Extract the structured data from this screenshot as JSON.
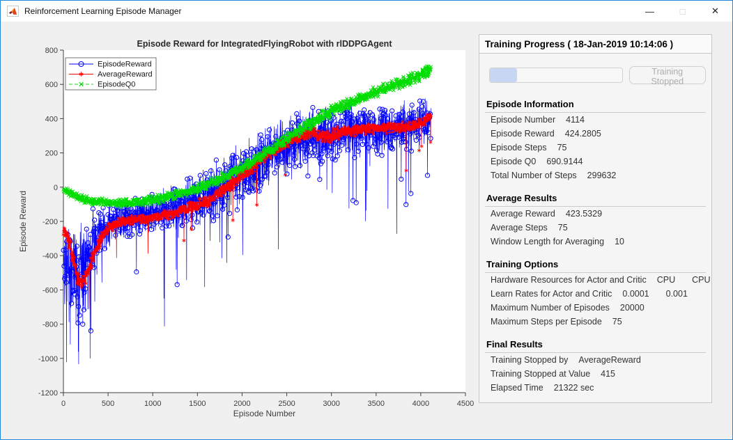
{
  "window": {
    "title": "Reinforcement Learning Episode Manager",
    "app_icon": "matlab-logo",
    "controls": {
      "minimize": "—",
      "maximize": "□",
      "close": "✕"
    }
  },
  "chart_data": {
    "type": "line",
    "title": "Episode Reward for IntegratedFlyingRobot with rlDDPGAgent",
    "xlabel": "Episode Number",
    "ylabel": "Episode Reward",
    "xlim": [
      0,
      4500
    ],
    "ylim": [
      -1200,
      800
    ],
    "xticks": [
      0,
      500,
      1000,
      1500,
      2000,
      2500,
      3000,
      3500,
      4000,
      4500
    ],
    "yticks": [
      -1200,
      -1000,
      -800,
      -600,
      -400,
      -200,
      0,
      200,
      400,
      600,
      800
    ],
    "grid": false,
    "legend_position": "top-left",
    "episodes_total": 4114,
    "series": [
      {
        "name": "EpisodeReward",
        "color": "#0000ff",
        "marker": "circle",
        "line": "solid",
        "final_value": 424.2805,
        "trend_keyframes": [
          [
            0,
            -380,
            260
          ],
          [
            80,
            -470,
            300
          ],
          [
            160,
            -530,
            310
          ],
          [
            260,
            -430,
            280
          ],
          [
            400,
            -270,
            190
          ],
          [
            550,
            -205,
            140
          ],
          [
            800,
            -170,
            120
          ],
          [
            1100,
            -140,
            140
          ],
          [
            1400,
            -95,
            170
          ],
          [
            1700,
            -25,
            195
          ],
          [
            2000,
            70,
            210
          ],
          [
            2300,
            185,
            200
          ],
          [
            2600,
            275,
            185
          ],
          [
            2900,
            305,
            180
          ],
          [
            3200,
            320,
            175
          ],
          [
            3600,
            340,
            170
          ],
          [
            3950,
            375,
            155
          ],
          [
            4114,
            400,
            145
          ]
        ],
        "note": "noisy per-episode reward, early dips reach -1050"
      },
      {
        "name": "AverageReward",
        "color": "#ff0000",
        "marker": "asterisk",
        "line": "solid",
        "final_value": 423.5329,
        "trend_keyframes": [
          [
            0,
            -240,
            55
          ],
          [
            70,
            -330,
            70
          ],
          [
            150,
            -520,
            70
          ],
          [
            230,
            -555,
            60
          ],
          [
            320,
            -430,
            65
          ],
          [
            420,
            -300,
            60
          ],
          [
            520,
            -235,
            50
          ],
          [
            700,
            -195,
            45
          ],
          [
            1000,
            -178,
            45
          ],
          [
            1300,
            -142,
            50
          ],
          [
            1600,
            -85,
            55
          ],
          [
            1900,
            25,
            60
          ],
          [
            2200,
            155,
            60
          ],
          [
            2500,
            265,
            55
          ],
          [
            2750,
            320,
            55
          ],
          [
            2950,
            295,
            70
          ],
          [
            3150,
            325,
            60
          ],
          [
            3400,
            338,
            50
          ],
          [
            3700,
            348,
            50
          ],
          [
            4000,
            368,
            48
          ],
          [
            4114,
            418,
            40
          ]
        ],
        "note": "10-episode moving average band"
      },
      {
        "name": "EpisodeQ0",
        "color": "#00dd00",
        "marker": "x",
        "line": "dashed",
        "final_value": 690.9144,
        "trend_keyframes": [
          [
            0,
            -12,
            22
          ],
          [
            150,
            -55,
            28
          ],
          [
            350,
            -85,
            30
          ],
          [
            600,
            -95,
            30
          ],
          [
            900,
            -85,
            32
          ],
          [
            1200,
            -55,
            35
          ],
          [
            1500,
            -8,
            38
          ],
          [
            1800,
            58,
            40
          ],
          [
            2100,
            145,
            42
          ],
          [
            2400,
            248,
            45
          ],
          [
            2700,
            352,
            45
          ],
          [
            3000,
            442,
            45
          ],
          [
            3300,
            512,
            45
          ],
          [
            3600,
            576,
            45
          ],
          [
            3900,
            632,
            45
          ],
          [
            4114,
            682,
            45
          ]
        ],
        "note": "critic estimate, smooth S-curve rising to ~700"
      }
    ]
  },
  "panel": {
    "title": "Training Progress ( 18-Jan-2019 10:14:06 )",
    "progress": {
      "percent": 20.6
    },
    "stop_button_label": "Training Stopped",
    "sections": [
      {
        "title": "Episode Information",
        "rows": [
          {
            "label": "Episode Number",
            "values": [
              "4114"
            ]
          },
          {
            "label": "Episode Reward",
            "values": [
              "424.2805"
            ]
          },
          {
            "label": "Episode Steps",
            "values": [
              "75"
            ]
          },
          {
            "label": "Episode Q0",
            "values": [
              "690.9144"
            ]
          },
          {
            "label": "Total Number of Steps",
            "values": [
              "299632"
            ]
          }
        ]
      },
      {
        "title": "Average Results",
        "rows": [
          {
            "label": "Average Reward",
            "values": [
              "423.5329"
            ]
          },
          {
            "label": "Average Steps",
            "values": [
              "75"
            ]
          },
          {
            "label": "Window Length for Averaging",
            "values": [
              "10"
            ]
          }
        ]
      },
      {
        "title": "Training Options",
        "rows": [
          {
            "label": "Hardware Resources for Actor and Critic",
            "values": [
              "CPU",
              "CPU"
            ]
          },
          {
            "label": "Learn Rates for Actor and Critic",
            "values": [
              "0.0001",
              "0.001"
            ]
          },
          {
            "label": "Maximum Number of Episodes",
            "values": [
              "20000"
            ]
          },
          {
            "label": "Maximum Steps per Episode",
            "values": [
              "75"
            ]
          }
        ]
      },
      {
        "title": "Final Results",
        "rows": [
          {
            "label": "Training Stopped by",
            "values": [
              "AverageReward"
            ]
          },
          {
            "label": "Training Stopped at Value",
            "values": [
              "415"
            ]
          },
          {
            "label": "Elapsed Time",
            "values": [
              "21322 sec"
            ]
          }
        ]
      }
    ]
  }
}
